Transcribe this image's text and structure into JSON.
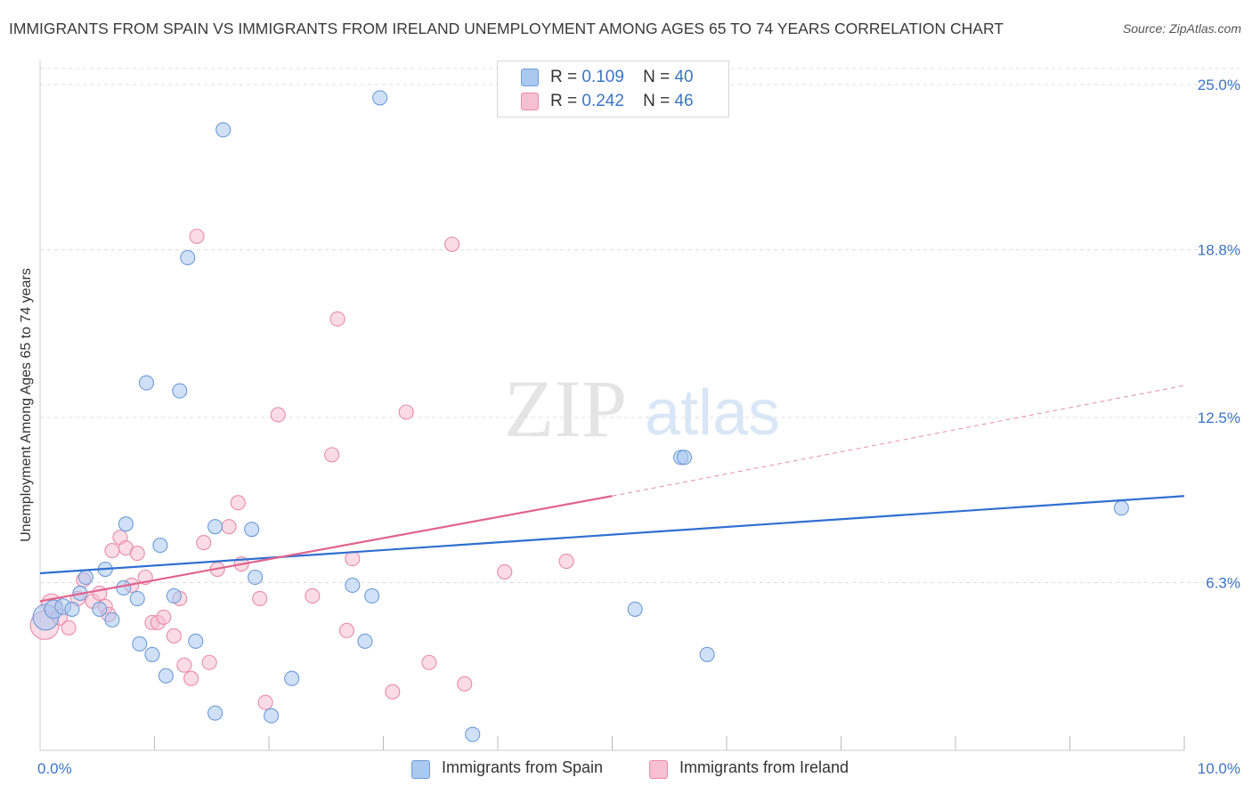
{
  "title": "IMMIGRANTS FROM SPAIN VS IMMIGRANTS FROM IRELAND UNEMPLOYMENT AMONG AGES 65 TO 74 YEARS CORRELATION CHART",
  "source": "Source: ZipAtlas.com",
  "watermark": {
    "zip": "ZIP",
    "atlas": "atlas"
  },
  "legend": {
    "spain": {
      "r_label": "R =",
      "r_value": "0.109",
      "n_label": "N =",
      "n_value": "40"
    },
    "ireland": {
      "r_label": "R =",
      "r_value": "0.242",
      "n_label": "N =",
      "n_value": "46"
    }
  },
  "bottom_legend": {
    "spain": "Immigrants from Spain",
    "ireland": "Immigrants from Ireland"
  },
  "colors": {
    "spain_fill": "#aac8f0",
    "spain_stroke": "#6d9bd9",
    "spain_line": "#2f6fd0",
    "ireland_fill": "#f7bfd2",
    "ireland_stroke": "#e88aab",
    "ireland_line": "#e0638f",
    "tick_label": "#3d74c4",
    "grid": "#dddddd"
  },
  "chart_data": {
    "type": "scatter",
    "title": "IMMIGRANTS FROM SPAIN VS IMMIGRANTS FROM IRELAND UNEMPLOYMENT AMONG AGES 65 TO 74 YEARS CORRELATION CHART",
    "xlabel": "",
    "ylabel": "Unemployment Among Ages 65 to 74 years",
    "xlim": [
      0,
      10
    ],
    "ylim": [
      0,
      25.6
    ],
    "x_tick_labels": [
      {
        "value": 0,
        "label": "0.0%"
      },
      {
        "value": 10,
        "label": "10.0%"
      }
    ],
    "x_minor_ticks": [
      1,
      2,
      3,
      4,
      5,
      6,
      7,
      8,
      9,
      10
    ],
    "y_ticks": [
      {
        "value": 6.3,
        "label": "6.3%"
      },
      {
        "value": 12.5,
        "label": "12.5%"
      },
      {
        "value": 18.8,
        "label": "18.8%"
      },
      {
        "value": 25.0,
        "label": "25.0%"
      }
    ],
    "grid": true,
    "legend_position": "top-center",
    "series": [
      {
        "name": "Immigrants from Spain",
        "R": 0.109,
        "N": 40,
        "trend": {
          "x0": 0,
          "y0": 6.65,
          "x1": 10,
          "y1": 9.55
        },
        "points": [
          [
            0.05,
            5.0,
            18
          ],
          [
            0.12,
            5.3,
            13
          ],
          [
            0.2,
            5.4,
            11
          ],
          [
            0.28,
            5.3,
            10
          ],
          [
            0.35,
            5.9,
            10
          ],
          [
            0.4,
            6.5,
            10
          ],
          [
            0.52,
            5.3,
            10
          ],
          [
            0.57,
            6.8,
            10
          ],
          [
            0.63,
            4.9,
            10
          ],
          [
            0.73,
            6.1,
            10
          ],
          [
            0.75,
            8.5,
            10
          ],
          [
            0.85,
            5.7,
            10
          ],
          [
            0.87,
            4.0,
            10
          ],
          [
            0.93,
            13.8,
            10
          ],
          [
            0.98,
            3.6,
            10
          ],
          [
            1.05,
            7.7,
            10
          ],
          [
            1.1,
            2.8,
            10
          ],
          [
            1.17,
            5.8,
            10
          ],
          [
            1.22,
            13.5,
            10
          ],
          [
            1.29,
            18.5,
            10
          ],
          [
            1.36,
            4.1,
            10
          ],
          [
            1.53,
            8.4,
            10
          ],
          [
            1.53,
            1.4,
            10
          ],
          [
            1.6,
            23.3,
            10
          ],
          [
            1.85,
            8.3,
            10
          ],
          [
            1.88,
            6.5,
            10
          ],
          [
            2.02,
            1.3,
            10
          ],
          [
            2.2,
            2.7,
            10
          ],
          [
            2.73,
            6.2,
            10
          ],
          [
            2.84,
            4.1,
            10
          ],
          [
            2.9,
            5.8,
            10
          ],
          [
            2.97,
            24.5,
            10
          ],
          [
            3.78,
            0.6,
            10
          ],
          [
            5.2,
            5.3,
            10
          ],
          [
            5.6,
            11.0,
            10
          ],
          [
            5.63,
            11.0,
            10
          ],
          [
            5.83,
            3.6,
            10
          ],
          [
            9.45,
            9.1,
            10
          ]
        ]
      },
      {
        "name": "Immigrants from Ireland",
        "R": 0.242,
        "N": 46,
        "trend": {
          "x0": 0,
          "y0": 5.6,
          "x1": 5.0,
          "y1": 9.55
        },
        "trend_dashed_extension": {
          "x0": 5.0,
          "y0": 9.55,
          "x1": 10,
          "y1": 13.7
        },
        "points": [
          [
            0.04,
            4.7,
            20
          ],
          [
            0.1,
            5.5,
            14
          ],
          [
            0.17,
            5.0,
            11
          ],
          [
            0.25,
            4.6,
            10
          ],
          [
            0.33,
            5.7,
            10
          ],
          [
            0.38,
            6.4,
            10
          ],
          [
            0.46,
            5.6,
            10
          ],
          [
            0.52,
            5.9,
            10
          ],
          [
            0.57,
            5.4,
            10
          ],
          [
            0.6,
            5.1,
            10
          ],
          [
            0.63,
            7.5,
            10
          ],
          [
            0.7,
            8.0,
            10
          ],
          [
            0.75,
            7.6,
            10
          ],
          [
            0.8,
            6.2,
            10
          ],
          [
            0.85,
            7.4,
            10
          ],
          [
            0.92,
            6.5,
            10
          ],
          [
            0.98,
            4.8,
            10
          ],
          [
            1.03,
            4.8,
            10
          ],
          [
            1.08,
            5.0,
            10
          ],
          [
            1.17,
            4.3,
            10
          ],
          [
            1.22,
            5.7,
            10
          ],
          [
            1.26,
            3.2,
            10
          ],
          [
            1.32,
            2.7,
            10
          ],
          [
            1.37,
            19.3,
            10
          ],
          [
            1.43,
            7.8,
            10
          ],
          [
            1.48,
            3.3,
            10
          ],
          [
            1.55,
            6.8,
            10
          ],
          [
            1.65,
            8.4,
            10
          ],
          [
            1.73,
            9.3,
            10
          ],
          [
            1.76,
            7.0,
            10
          ],
          [
            1.92,
            5.7,
            10
          ],
          [
            1.97,
            1.8,
            10
          ],
          [
            2.08,
            12.6,
            10
          ],
          [
            2.38,
            5.8,
            10
          ],
          [
            2.55,
            11.1,
            10
          ],
          [
            2.6,
            16.2,
            10
          ],
          [
            2.68,
            4.5,
            10
          ],
          [
            2.73,
            7.2,
            10
          ],
          [
            3.08,
            2.2,
            10
          ],
          [
            3.2,
            12.7,
            10
          ],
          [
            3.4,
            3.3,
            10
          ],
          [
            3.6,
            19.0,
            10
          ],
          [
            3.71,
            2.5,
            10
          ],
          [
            4.06,
            6.7,
            10
          ],
          [
            4.6,
            7.1,
            10
          ]
        ]
      }
    ]
  }
}
